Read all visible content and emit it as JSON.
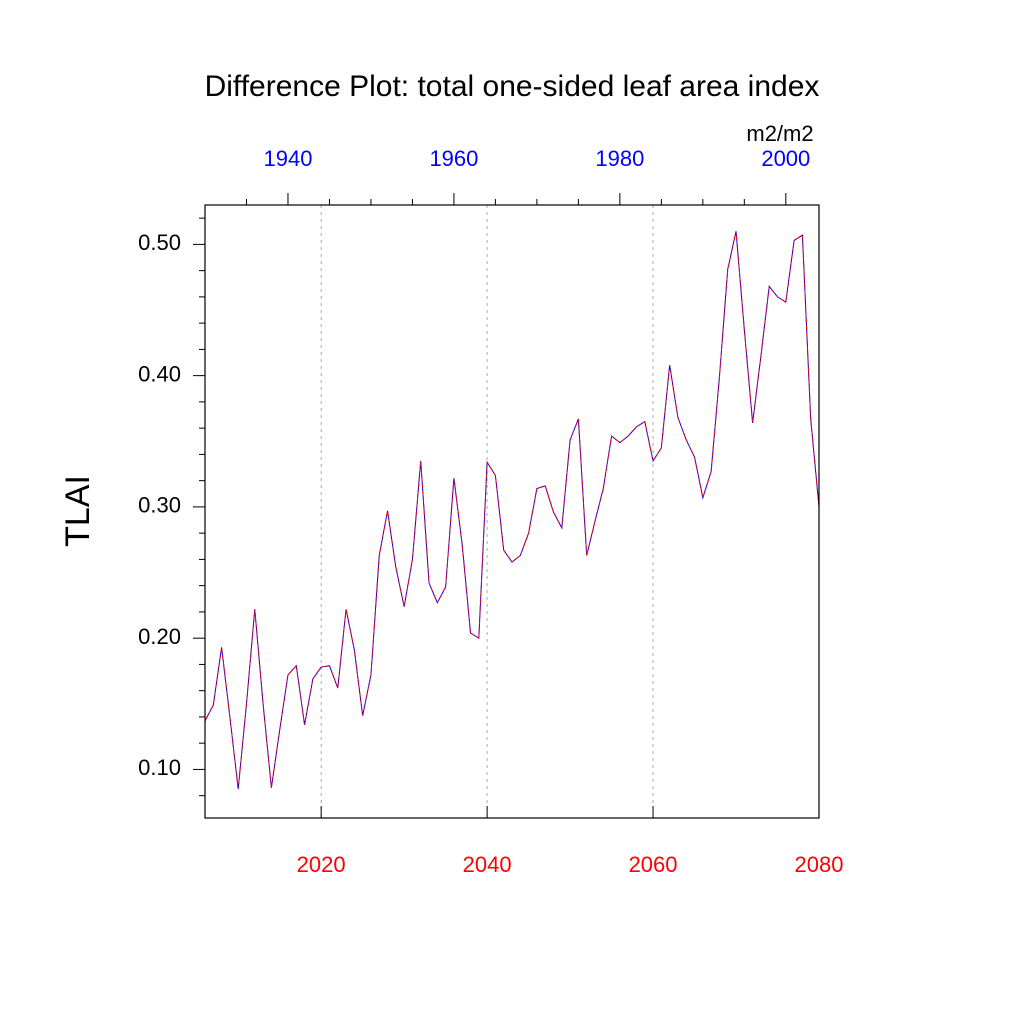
{
  "chart_data": {
    "type": "line",
    "title": "Difference Plot: total one-sided leaf area index",
    "ylabel": "TLAI",
    "units": "m2/m2",
    "x": [
      2006,
      2007,
      2008,
      2009,
      2010,
      2011,
      2012,
      2013,
      2014,
      2015,
      2016,
      2017,
      2018,
      2019,
      2020,
      2021,
      2022,
      2023,
      2024,
      2025,
      2026,
      2027,
      2028,
      2029,
      2030,
      2031,
      2032,
      2033,
      2034,
      2035,
      2036,
      2037,
      2038,
      2039,
      2040,
      2041,
      2042,
      2043,
      2044,
      2045,
      2046,
      2047,
      2048,
      2049,
      2050,
      2051,
      2052,
      2053,
      2054,
      2055,
      2056,
      2057,
      2058,
      2059,
      2060,
      2061,
      2062,
      2063,
      2064,
      2065,
      2066,
      2067,
      2068,
      2069,
      2070,
      2071,
      2072,
      2073,
      2074,
      2075,
      2076,
      2077,
      2078,
      2079,
      2080
    ],
    "series": [
      {
        "color": "#0000ff",
        "values": [
          0.137,
          0.149,
          0.193,
          0.14,
          0.085,
          0.15,
          0.222,
          0.15,
          0.086,
          0.13,
          0.172,
          0.179,
          0.134,
          0.169,
          0.178,
          0.179,
          0.162,
          0.222,
          0.191,
          0.141,
          0.172,
          0.263,
          0.297,
          0.254,
          0.224,
          0.26,
          0.335,
          0.242,
          0.227,
          0.239,
          0.322,
          0.271,
          0.204,
          0.2,
          0.334,
          0.324,
          0.267,
          0.258,
          0.263,
          0.28,
          0.314,
          0.316,
          0.296,
          0.284,
          0.351,
          0.367,
          0.263,
          0.289,
          0.314,
          0.354,
          0.349,
          0.354,
          0.361,
          0.365,
          0.335,
          0.345,
          0.408,
          0.368,
          0.351,
          0.338,
          0.307,
          0.327,
          0.399,
          0.481,
          0.51,
          0.435,
          0.364,
          0.415,
          0.468,
          0.46,
          0.456,
          0.503,
          0.507,
          0.367,
          0.3
        ]
      },
      {
        "color": "#ff0000",
        "dashed": true,
        "values": [
          0.137,
          0.149,
          0.193,
          0.14,
          0.085,
          0.15,
          0.222,
          0.15,
          0.086,
          0.13,
          0.172,
          0.179,
          0.134,
          0.169,
          0.178,
          0.179,
          0.162,
          0.222,
          0.191,
          0.141,
          0.172,
          0.263,
          0.297,
          0.254,
          0.224,
          0.26,
          0.335,
          0.242,
          0.227,
          0.239,
          0.322,
          0.271,
          0.204,
          0.2,
          0.334,
          0.324,
          0.267,
          0.258,
          0.263,
          0.28,
          0.314,
          0.316,
          0.296,
          0.284,
          0.351,
          0.367,
          0.263,
          0.289,
          0.314,
          0.354,
          0.349,
          0.354,
          0.361,
          0.365,
          0.335,
          0.345,
          0.408,
          0.368,
          0.351,
          0.338,
          0.307,
          0.327,
          0.399,
          0.481,
          0.51,
          0.435,
          0.364,
          0.415,
          0.468,
          0.46,
          0.456,
          0.503,
          0.507,
          0.367,
          0.3
        ]
      }
    ],
    "xlim": [
      2006,
      2080
    ],
    "xticks": [
      2020,
      2040,
      2060,
      2080
    ],
    "xtick_color": "#ff0000",
    "grid": true,
    "x2lim": [
      1930,
      2004
    ],
    "x2ticks": [
      1940,
      1960,
      1980,
      2000
    ],
    "x2minorticks": [
      1935,
      1945,
      1950,
      1955,
      1965,
      1970,
      1975,
      1985,
      1990,
      1995
    ],
    "x2tick_color": "#0000ff",
    "ylim": [
      0.063,
      0.53
    ],
    "yticks": [
      {
        "value": 0.1,
        "label": "0.10"
      },
      {
        "value": 0.2,
        "label": "0.20"
      },
      {
        "value": 0.3,
        "label": "0.30"
      },
      {
        "value": 0.4,
        "label": "0.40"
      },
      {
        "value": 0.5,
        "label": "0.50"
      }
    ],
    "yminorticks": [
      0.08,
      0.12,
      0.14,
      0.16,
      0.18,
      0.22,
      0.24,
      0.26,
      0.28,
      0.32,
      0.34,
      0.36,
      0.38,
      0.42,
      0.44,
      0.46,
      0.48,
      0.52
    ]
  }
}
